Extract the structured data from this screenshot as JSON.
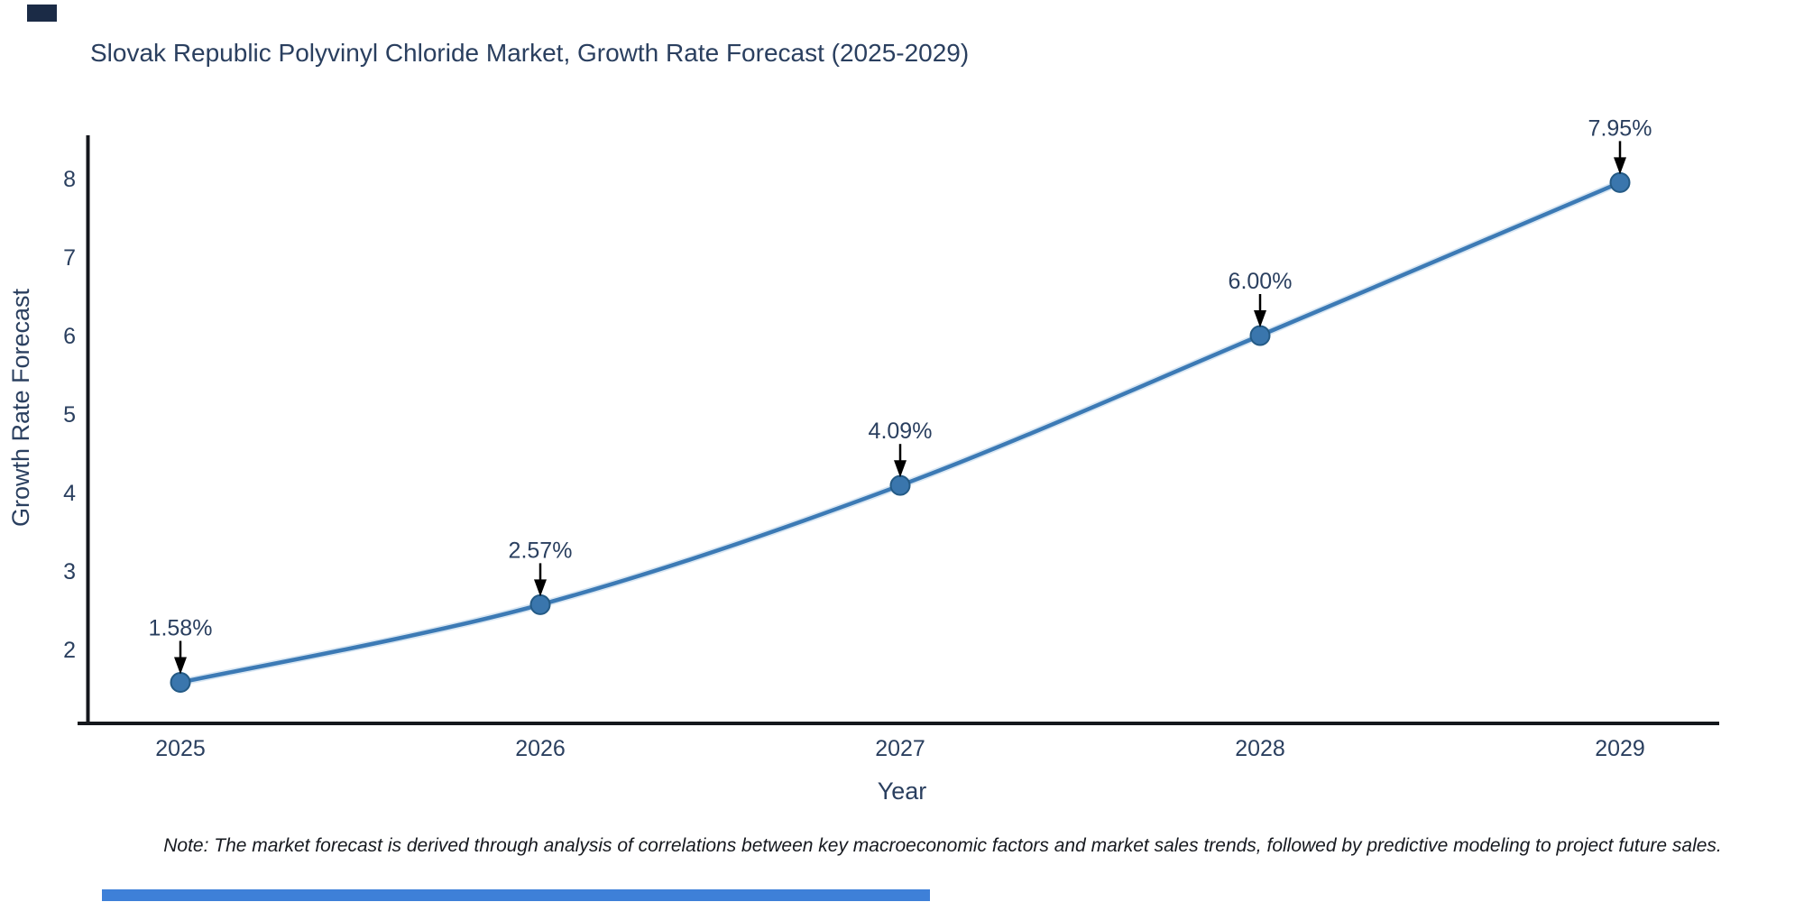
{
  "chart_data": {
    "type": "line",
    "title": "Slovak Republic Polyvinyl Chloride Market, Growth Rate Forecast (2025-2029)",
    "xlabel": "Year",
    "ylabel": "Growth Rate Forecast",
    "x_labels": [
      "2025",
      "2026",
      "2027",
      "2028",
      "2029"
    ],
    "series": [
      {
        "name": "Growth Rate Forecast",
        "values": [
          1.58,
          2.57,
          4.09,
          6.0,
          7.95
        ]
      }
    ],
    "point_labels": [
      "1.58%",
      "2.57%",
      "4.09%",
      "6.00%",
      "7.95%"
    ],
    "y_ticks": [
      2,
      3,
      4,
      5,
      6,
      7,
      8
    ],
    "ylim": [
      1.06,
      8.5
    ],
    "grid": false,
    "legend_position": "none",
    "line_color": "#3c7ab5",
    "line_halo_color": "#b9d4ea",
    "marker_color": "#3a76ad",
    "marker_edge_color": "#245a85",
    "axis_color": "#14171c",
    "text_color": "#2a3f5f",
    "annotation_arrow_color": "#000000"
  },
  "note": {
    "text": "Note: The market forecast is derived through analysis of correlations between key macroeconomic factors and market sales trends, followed by predictive modeling to project future sales."
  },
  "decorations": {
    "top_left_mark_color": "#1b2b46",
    "bottom_bar_color": "#3e80d8"
  }
}
